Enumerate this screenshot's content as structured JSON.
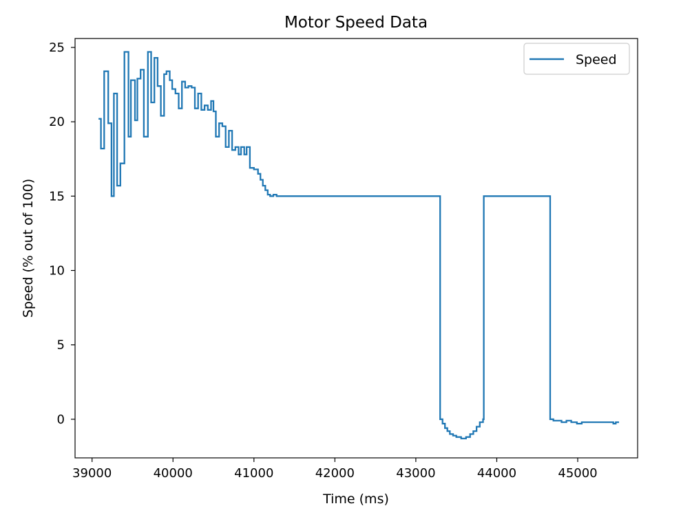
{
  "chart_data": {
    "type": "line",
    "title": "Motor Speed Data",
    "xlabel": "Time (ms)",
    "ylabel": "Speed (% out of 100)",
    "xlim": [
      38790,
      45740
    ],
    "ylim": [
      -2.6,
      25.6
    ],
    "xticks": [
      39000,
      40000,
      41000,
      42000,
      43000,
      44000,
      45000
    ],
    "yticks": [
      0,
      5,
      10,
      15,
      20,
      25
    ],
    "grid": false,
    "legend": "top-right",
    "series": [
      {
        "name": "Speed",
        "color": "#1f77b4",
        "step": true,
        "points": [
          [
            39080,
            20.2
          ],
          [
            39110,
            18.2
          ],
          [
            39150,
            23.4
          ],
          [
            39200,
            19.9
          ],
          [
            39240,
            15.0
          ],
          [
            39270,
            21.9
          ],
          [
            39310,
            15.7
          ],
          [
            39350,
            17.2
          ],
          [
            39400,
            24.7
          ],
          [
            39450,
            19.0
          ],
          [
            39480,
            22.8
          ],
          [
            39530,
            20.1
          ],
          [
            39560,
            22.9
          ],
          [
            39600,
            23.5
          ],
          [
            39640,
            19.0
          ],
          [
            39690,
            24.7
          ],
          [
            39730,
            21.3
          ],
          [
            39770,
            24.3
          ],
          [
            39810,
            22.4
          ],
          [
            39850,
            20.4
          ],
          [
            39890,
            23.2
          ],
          [
            39920,
            23.4
          ],
          [
            39960,
            22.8
          ],
          [
            39990,
            22.2
          ],
          [
            40030,
            21.9
          ],
          [
            40070,
            20.9
          ],
          [
            40110,
            22.7
          ],
          [
            40150,
            22.3
          ],
          [
            40190,
            22.4
          ],
          [
            40230,
            22.3
          ],
          [
            40270,
            20.9
          ],
          [
            40310,
            21.9
          ],
          [
            40350,
            20.8
          ],
          [
            40390,
            21.1
          ],
          [
            40430,
            20.8
          ],
          [
            40470,
            21.4
          ],
          [
            40500,
            20.7
          ],
          [
            40530,
            19.0
          ],
          [
            40570,
            19.9
          ],
          [
            40610,
            19.7
          ],
          [
            40650,
            18.3
          ],
          [
            40690,
            19.4
          ],
          [
            40730,
            18.1
          ],
          [
            40770,
            18.3
          ],
          [
            40810,
            17.8
          ],
          [
            40840,
            18.3
          ],
          [
            40880,
            17.8
          ],
          [
            40910,
            18.3
          ],
          [
            40950,
            16.9
          ],
          [
            41000,
            16.8
          ],
          [
            41050,
            16.5
          ],
          [
            41080,
            16.1
          ],
          [
            41110,
            15.7
          ],
          [
            41140,
            15.4
          ],
          [
            41170,
            15.1
          ],
          [
            41200,
            15.0
          ],
          [
            41240,
            15.1
          ],
          [
            41280,
            15.0
          ],
          [
            43300,
            0.0
          ],
          [
            43330,
            -0.3
          ],
          [
            43360,
            -0.6
          ],
          [
            43390,
            -0.8
          ],
          [
            43420,
            -1.0
          ],
          [
            43460,
            -1.1
          ],
          [
            43500,
            -1.2
          ],
          [
            43560,
            -1.3
          ],
          [
            43620,
            -1.2
          ],
          [
            43670,
            -1.0
          ],
          [
            43710,
            -0.8
          ],
          [
            43750,
            -0.5
          ],
          [
            43790,
            -0.2
          ],
          [
            43830,
            0.0
          ],
          [
            43840,
            15.0
          ],
          [
            44660,
            0.0
          ],
          [
            44700,
            -0.1
          ],
          [
            44760,
            -0.1
          ],
          [
            44800,
            -0.2
          ],
          [
            44860,
            -0.1
          ],
          [
            44920,
            -0.2
          ],
          [
            44990,
            -0.3
          ],
          [
            45050,
            -0.2
          ],
          [
            45120,
            -0.2
          ],
          [
            45200,
            -0.2
          ],
          [
            45300,
            -0.2
          ],
          [
            45400,
            -0.2
          ],
          [
            45440,
            -0.3
          ],
          [
            45470,
            -0.2
          ],
          [
            45510,
            -0.2
          ]
        ]
      }
    ]
  }
}
